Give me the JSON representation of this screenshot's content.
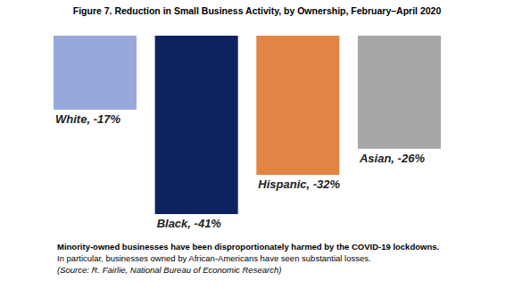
{
  "chart_data": {
    "type": "bar",
    "title": "Figure 7. Reduction in Small Business Activity, by Ownership, February–April 2020",
    "categories": [
      "White",
      "Black",
      "Hispanic",
      "Asian"
    ],
    "values": [
      -17,
      -41,
      -32,
      -26
    ],
    "value_labels": [
      "-17%",
      "-41%",
      "-32%",
      "-26%"
    ],
    "colors": [
      "#97a9dc",
      "#0f2260",
      "#e08543",
      "#a7a7a7"
    ],
    "ylim": [
      -41,
      0
    ],
    "tick_labels": false,
    "grid": false,
    "data_labels": true,
    "annotations": [
      "Minority-owned businesses have been disproportionately harmed by the COVID-19 lockdowns.",
      "In particular, businesses owned by African-Americans have seen substantial losses.",
      "(Source: R. Fairlie, National Bureau of Economic Research)"
    ]
  }
}
